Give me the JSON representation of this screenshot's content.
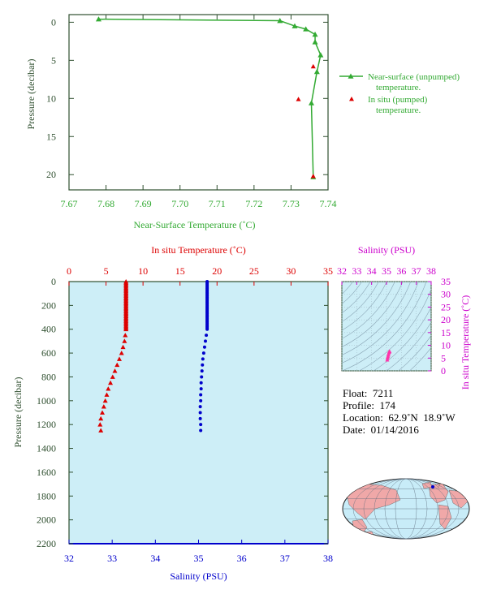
{
  "colors": {
    "green": "#33aa33",
    "red": "#dd0000",
    "blue": "#0000cc",
    "magenta": "#cc00cc",
    "axis_dark": "#2f4f2f",
    "plot_bg": "#cdeef7",
    "land": "#f0a8a8",
    "ocean": "#c8ecf8"
  },
  "chart_data": [
    {
      "id": "near_surface",
      "type": "line",
      "xlabel": "Near-Surface Temperature (˚C)",
      "ylabel": "Pressure (decibar)",
      "xlim": [
        7.67,
        7.74
      ],
      "ylim": [
        22,
        -1
      ],
      "xticks": [
        "7.67",
        "7.68",
        "7.69",
        "7.70",
        "7.71",
        "7.72",
        "7.73",
        "7.74"
      ],
      "yticks": [
        "0",
        "5",
        "10",
        "15",
        "20"
      ],
      "legend_position": "right",
      "series": [
        {
          "name": "Near-surface (unpumped)",
          "name_line2": "temperature.",
          "style": "line-triangle",
          "x": [
            7.678,
            7.727,
            7.731,
            7.734,
            7.7365,
            7.7365,
            7.738,
            7.737,
            7.7355,
            7.736
          ],
          "y": [
            -0.4,
            -0.2,
            0.5,
            0.9,
            1.6,
            2.6,
            4.3,
            6.5,
            10.6,
            20.3
          ]
        },
        {
          "name": "In situ (pumped)",
          "name_line2": "temperature.",
          "style": "triangle",
          "x": [
            7.736,
            7.732,
            7.736
          ],
          "y": [
            5.8,
            10.1,
            20.2
          ]
        }
      ]
    },
    {
      "id": "profile",
      "type": "line",
      "ylabel": "Pressure (decibar)",
      "ylim": [
        2200,
        0
      ],
      "yticks": [
        "0",
        "200",
        "400",
        "600",
        "800",
        "1000",
        "1200",
        "1400",
        "1600",
        "1800",
        "2000",
        "2200"
      ],
      "top_xlabel": "In situ Temperature (˚C)",
      "top_xlim": [
        0,
        35
      ],
      "top_xticks": [
        "0",
        "5",
        "10",
        "15",
        "20",
        "25",
        "30",
        "35"
      ],
      "bottom_xlabel": "Salinity (PSU)",
      "bottom_xlim": [
        32,
        38
      ],
      "bottom_xticks": [
        "32",
        "33",
        "34",
        "35",
        "36",
        "37",
        "38"
      ],
      "temperature": {
        "pressure": [
          0,
          10,
          20,
          30,
          40,
          50,
          60,
          70,
          80,
          90,
          100,
          110,
          120,
          130,
          140,
          150,
          160,
          170,
          180,
          190,
          200,
          210,
          220,
          230,
          240,
          250,
          260,
          270,
          280,
          290,
          300,
          310,
          320,
          330,
          340,
          350,
          360,
          370,
          380,
          390,
          400,
          450,
          500,
          550,
          600,
          650,
          700,
          750,
          800,
          850,
          900,
          950,
          1000,
          1050,
          1100,
          1150,
          1200,
          1250
        ],
        "values": [
          7.7,
          7.7,
          7.7,
          7.7,
          7.7,
          7.7,
          7.7,
          7.7,
          7.7,
          7.7,
          7.7,
          7.7,
          7.7,
          7.7,
          7.7,
          7.7,
          7.7,
          7.7,
          7.7,
          7.7,
          7.7,
          7.7,
          7.7,
          7.7,
          7.7,
          7.7,
          7.7,
          7.7,
          7.7,
          7.7,
          7.7,
          7.7,
          7.7,
          7.7,
          7.7,
          7.7,
          7.7,
          7.7,
          7.7,
          7.7,
          7.7,
          7.6,
          7.5,
          7.3,
          7.1,
          6.8,
          6.5,
          6.2,
          5.9,
          5.6,
          5.3,
          5.1,
          4.9,
          4.7,
          4.5,
          4.3,
          4.2,
          4.3
        ]
      },
      "salinity": {
        "pressure": [
          0,
          10,
          20,
          30,
          40,
          50,
          60,
          70,
          80,
          90,
          100,
          110,
          120,
          130,
          140,
          150,
          160,
          170,
          180,
          190,
          200,
          210,
          220,
          230,
          240,
          250,
          260,
          270,
          280,
          290,
          300,
          310,
          320,
          330,
          340,
          350,
          360,
          370,
          380,
          390,
          400,
          450,
          500,
          550,
          600,
          650,
          700,
          750,
          800,
          850,
          900,
          950,
          1000,
          1050,
          1100,
          1150,
          1200,
          1250
        ],
        "values": [
          35.2,
          35.2,
          35.2,
          35.2,
          35.2,
          35.2,
          35.2,
          35.2,
          35.2,
          35.2,
          35.2,
          35.2,
          35.2,
          35.2,
          35.2,
          35.2,
          35.2,
          35.2,
          35.2,
          35.2,
          35.2,
          35.2,
          35.2,
          35.2,
          35.2,
          35.2,
          35.2,
          35.2,
          35.2,
          35.2,
          35.2,
          35.2,
          35.2,
          35.2,
          35.2,
          35.2,
          35.2,
          35.2,
          35.2,
          35.2,
          35.2,
          35.18,
          35.16,
          35.14,
          35.12,
          35.1,
          35.09,
          35.08,
          35.07,
          35.06,
          35.06,
          35.05,
          35.05,
          35.04,
          35.04,
          35.04,
          35.05,
          35.05
        ]
      }
    },
    {
      "id": "ts_diagram",
      "type": "scatter",
      "xlabel": "Salinity (PSU)",
      "ylabel": "In situ Temperature (˚C)",
      "xlim": [
        32,
        38
      ],
      "ylim": [
        0,
        35
      ],
      "xticks": [
        "32",
        "33",
        "34",
        "35",
        "36",
        "37",
        "38"
      ],
      "yticks": [
        "0",
        "5",
        "10",
        "15",
        "20",
        "25",
        "30",
        "35"
      ],
      "points_s": [
        35.05,
        35.07,
        35.1,
        35.12,
        35.15,
        35.18,
        35.2,
        35.2
      ],
      "points_t": [
        4.3,
        5.0,
        5.6,
        6.2,
        6.8,
        7.3,
        7.6,
        7.7
      ]
    }
  ],
  "float_info": {
    "float": "Float:  7211",
    "profile": "Profile:  174",
    "location": "Location:  62.9˚N  18.9˚W",
    "date": "Date:  01/14/2016"
  }
}
